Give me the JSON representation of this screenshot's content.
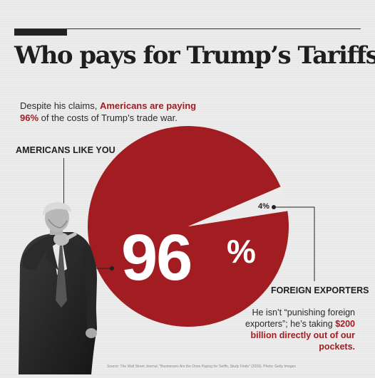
{
  "title": "Who pays for Trump’s Tariffs?",
  "subtitle": {
    "part1": "Despite his claims, ",
    "highlight": "Americans are paying 96%",
    "part2": " of the costs of Trump’s trade war."
  },
  "americans_label": "AMERICANS LIKE YOU",
  "foreign_label": "FOREIGN EXPORTERS",
  "foreign_desc": {
    "text": "He isn’t “punishing foreign exporters”; he’s taking ",
    "highlight": "$200 billion directly out of our pockets."
  },
  "big_value": "96",
  "big_sign": "%",
  "small_value": "4%",
  "source": "Source: The Wall Street Journal, \"Businesses Are the Ones Paying for Tariffs, Study Finds\" (2026). Photo: Getty Images",
  "colors": {
    "americans": "#a11d22",
    "foreign": "#ececec",
    "text": "#1e1e1e"
  },
  "chart_data": {
    "type": "pie",
    "slices": [
      {
        "label": "AMERICANS LIKE YOU",
        "value": 96
      },
      {
        "label": "FOREIGN EXPORTERS",
        "value": 4
      }
    ]
  }
}
